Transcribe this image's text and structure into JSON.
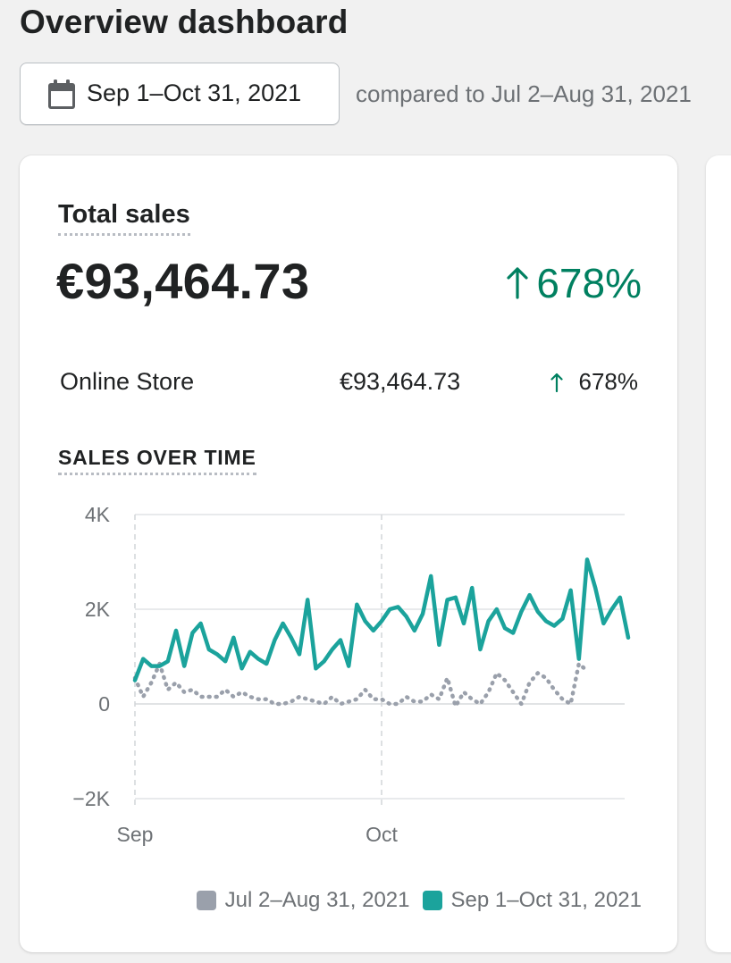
{
  "page": {
    "title": "Overview dashboard"
  },
  "date_filter": {
    "range_label": "Sep 1–Oct 31, 2021",
    "compared_text": "compared to Jul 2–Aug 31, 2021"
  },
  "card": {
    "title": "Total sales",
    "total_value": "€93,464.73",
    "total_change": "678%",
    "breakdown": [
      {
        "label": "Online Store",
        "value": "€93,464.73",
        "change": "678%"
      }
    ],
    "chart_title": "SALES OVER TIME"
  },
  "colors": {
    "current_series": "#1ba39c",
    "previous_series": "#9aa0ab",
    "positive": "#008060",
    "grid": "#e1e3e5"
  },
  "icons": {
    "date_button": "calendar-icon",
    "increase": "arrow-up-icon"
  },
  "chart_data": {
    "type": "line",
    "title": "SALES OVER TIME",
    "xlabel": "",
    "ylabel": "",
    "ylim": [
      -2000,
      4000
    ],
    "y_ticks": [
      {
        "value": 4000,
        "label": "4K"
      },
      {
        "value": 2000,
        "label": "2K"
      },
      {
        "value": 0,
        "label": "0"
      },
      {
        "value": -2000,
        "label": "−2K"
      }
    ],
    "x_ticks": [
      {
        "index": 0,
        "label": "Sep"
      },
      {
        "index": 30,
        "label": "Oct"
      }
    ],
    "grid": true,
    "legend_position": "bottom-right",
    "series": [
      {
        "name": "Jul 2–Aug 31, 2021",
        "style": "dotted",
        "values": [
          550,
          150,
          450,
          850,
          300,
          450,
          250,
          300,
          150,
          150,
          150,
          300,
          150,
          250,
          150,
          100,
          100,
          0,
          0,
          50,
          150,
          100,
          50,
          0,
          150,
          0,
          50,
          100,
          300,
          100,
          100,
          0,
          0,
          150,
          50,
          50,
          200,
          100,
          550,
          -50,
          250,
          100,
          0,
          250,
          650,
          500,
          250,
          0,
          450,
          650,
          550,
          300,
          100,
          0,
          850,
          700
        ]
      },
      {
        "name": "Sep 1–Oct 31, 2021",
        "style": "solid",
        "values": [
          500,
          950,
          800,
          800,
          900,
          1550,
          800,
          1500,
          1700,
          1150,
          1050,
          900,
          1400,
          750,
          1100,
          950,
          850,
          1350,
          1700,
          1400,
          1050,
          2200,
          750,
          900,
          1150,
          1350,
          800,
          2100,
          1750,
          1550,
          1750,
          2000,
          2050,
          1850,
          1550,
          1900,
          2700,
          1250,
          2200,
          2250,
          1700,
          2450,
          1150,
          1750,
          2000,
          1600,
          1500,
          1950,
          2300,
          1950,
          1750,
          1650,
          1800,
          2400,
          950,
          3050,
          2450,
          1700,
          2000,
          2250,
          1400
        ]
      }
    ]
  }
}
